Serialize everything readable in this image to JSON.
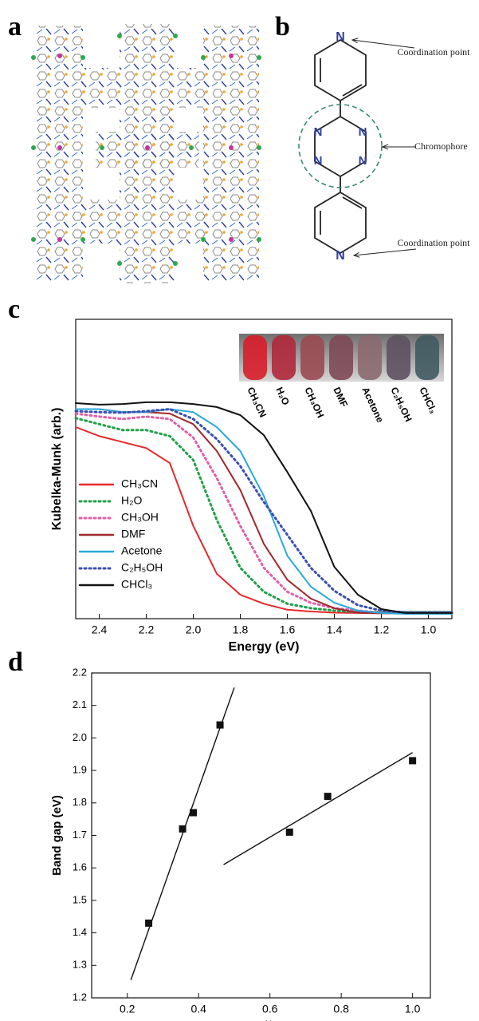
{
  "panel_labels": [
    "a",
    "b",
    "c",
    "d"
  ],
  "molecule": {
    "atoms": [
      "N",
      "N",
      "N",
      "N",
      "N",
      "N"
    ],
    "annotations": [
      "Coordination point",
      "Chromophore",
      "Coordination point"
    ]
  },
  "chart_data": [
    {
      "type": "line",
      "xlabel": "Energy (eV)",
      "ylabel": "Kubelka-Munk (arb.)",
      "x": [
        2.5,
        2.4,
        2.3,
        2.2,
        2.1,
        2.0,
        1.9,
        1.8,
        1.7,
        1.6,
        1.5,
        1.4,
        1.3,
        1.2,
        1.1,
        1.0,
        0.9
      ],
      "xlim": [
        2.5,
        0.9
      ],
      "ylim": [
        0,
        1
      ],
      "xticks": [
        2.4,
        2.2,
        {
          "value": 2.0,
          "label": "2.0"
        },
        1.8,
        1.6,
        1.4,
        1.2,
        {
          "value": 1.0,
          "label": "1.0"
        }
      ],
      "legend": "lower left",
      "series": [
        {
          "name": "CH₃CN",
          "color": "#e8282c",
          "style": "solid",
          "values": [
            0.64,
            0.61,
            0.59,
            0.57,
            0.52,
            0.31,
            0.15,
            0.08,
            0.05,
            0.03,
            0.024,
            0.02,
            0.019,
            0.018,
            0.018,
            0.018,
            0.018
          ]
        },
        {
          "name": "H₂O",
          "color": "#22a04b",
          "style": "dotted",
          "values": [
            0.67,
            0.65,
            0.63,
            0.63,
            0.61,
            0.53,
            0.33,
            0.17,
            0.09,
            0.05,
            0.035,
            0.027,
            0.022,
            0.022,
            0.022,
            0.022,
            0.022
          ]
        },
        {
          "name": "CH₃OH",
          "color": "#e25fa8",
          "style": "dotted",
          "values": [
            0.685,
            0.675,
            0.667,
            0.675,
            0.667,
            0.605,
            0.47,
            0.31,
            0.17,
            0.09,
            0.053,
            0.035,
            0.027,
            0.02,
            0.02,
            0.02,
            0.02
          ]
        },
        {
          "name": "DMF",
          "color": "#a0262b",
          "style": "solid",
          "values": [
            0.7,
            0.7,
            0.69,
            0.69,
            0.685,
            0.65,
            0.56,
            0.43,
            0.25,
            0.13,
            0.067,
            0.035,
            0.02,
            0.018,
            0.018,
            0.018,
            0.018
          ]
        },
        {
          "name": "Acetone",
          "color": "#29a9d9",
          "style": "solid",
          "values": [
            0.7,
            0.7,
            0.69,
            0.69,
            0.7,
            0.69,
            0.64,
            0.56,
            0.41,
            0.21,
            0.107,
            0.053,
            0.027,
            0.019,
            0.016,
            0.016,
            0.016
          ]
        },
        {
          "name": "C₂H₅OH",
          "color": "#3a4fb0",
          "style": "dotted",
          "values": [
            0.693,
            0.69,
            0.688,
            0.693,
            0.7,
            0.667,
            0.6,
            0.51,
            0.39,
            0.28,
            0.17,
            0.093,
            0.045,
            0.027,
            0.021,
            0.021,
            0.021
          ]
        },
        {
          "name": "CHCl₃",
          "color": "#111111",
          "style": "solid",
          "values": [
            0.72,
            0.715,
            0.717,
            0.723,
            0.723,
            0.717,
            0.707,
            0.68,
            0.613,
            0.49,
            0.36,
            0.173,
            0.08,
            0.032,
            0.019,
            0.019,
            0.019
          ]
        }
      ]
    },
    {
      "type": "scatter",
      "ylabel": "Band gap (eV)",
      "xlabel": {
        "base": "E",
        "sub": "T",
        "sup": "N"
      },
      "x": [
        0.26,
        0.355,
        0.385,
        0.46,
        0.655,
        0.762,
        1.0
      ],
      "values": [
        1.43,
        1.72,
        1.77,
        2.04,
        1.71,
        1.82,
        1.93
      ],
      "color": "#111111",
      "fits": [
        {
          "x": [
            0.21,
            0.5
          ],
          "y": [
            1.255,
            2.155
          ]
        },
        {
          "x": [
            0.47,
            1.0
          ],
          "y": [
            1.61,
            1.955
          ]
        }
      ],
      "xlim": [
        0.1,
        1.05
      ],
      "ylim": [
        1.2,
        2.2
      ],
      "xticks": [
        0.2,
        0.4,
        0.6,
        0.8,
        {
          "value": 1.0,
          "label": "1.0"
        }
      ],
      "yticks": [
        1.2,
        1.3,
        1.4,
        1.5,
        1.6,
        1.7,
        1.8,
        1.9,
        {
          "value": 2.0,
          "label": "2.0"
        },
        2.1,
        2.2
      ]
    }
  ]
}
